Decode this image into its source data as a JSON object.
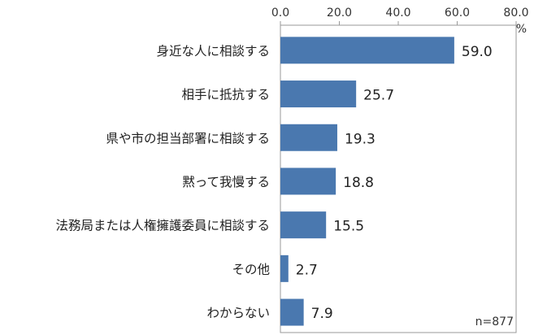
{
  "chart_data": {
    "type": "bar",
    "orientation": "horizontal",
    "categories": [
      "身近な人に相談する",
      "相手に抵抗する",
      "県や市の担当部署に相談する",
      "黙って我慢する",
      "法務局または人権擁護委員に相談する",
      "その他",
      "わからない"
    ],
    "values": [
      59.0,
      25.7,
      19.3,
      18.8,
      15.5,
      2.7,
      7.9
    ],
    "value_labels": [
      "59.0",
      "25.7",
      "19.3",
      "18.8",
      "15.5",
      "2.7",
      "7.9"
    ],
    "xlim": [
      0,
      80
    ],
    "x_ticks": [
      "0.0",
      "20.0",
      "40.0",
      "60.0",
      "80.0"
    ],
    "x_unit": "%",
    "x_axis_position": "top",
    "grid": false,
    "bar_color": "#4A78AF",
    "sample_note": "n=877"
  }
}
